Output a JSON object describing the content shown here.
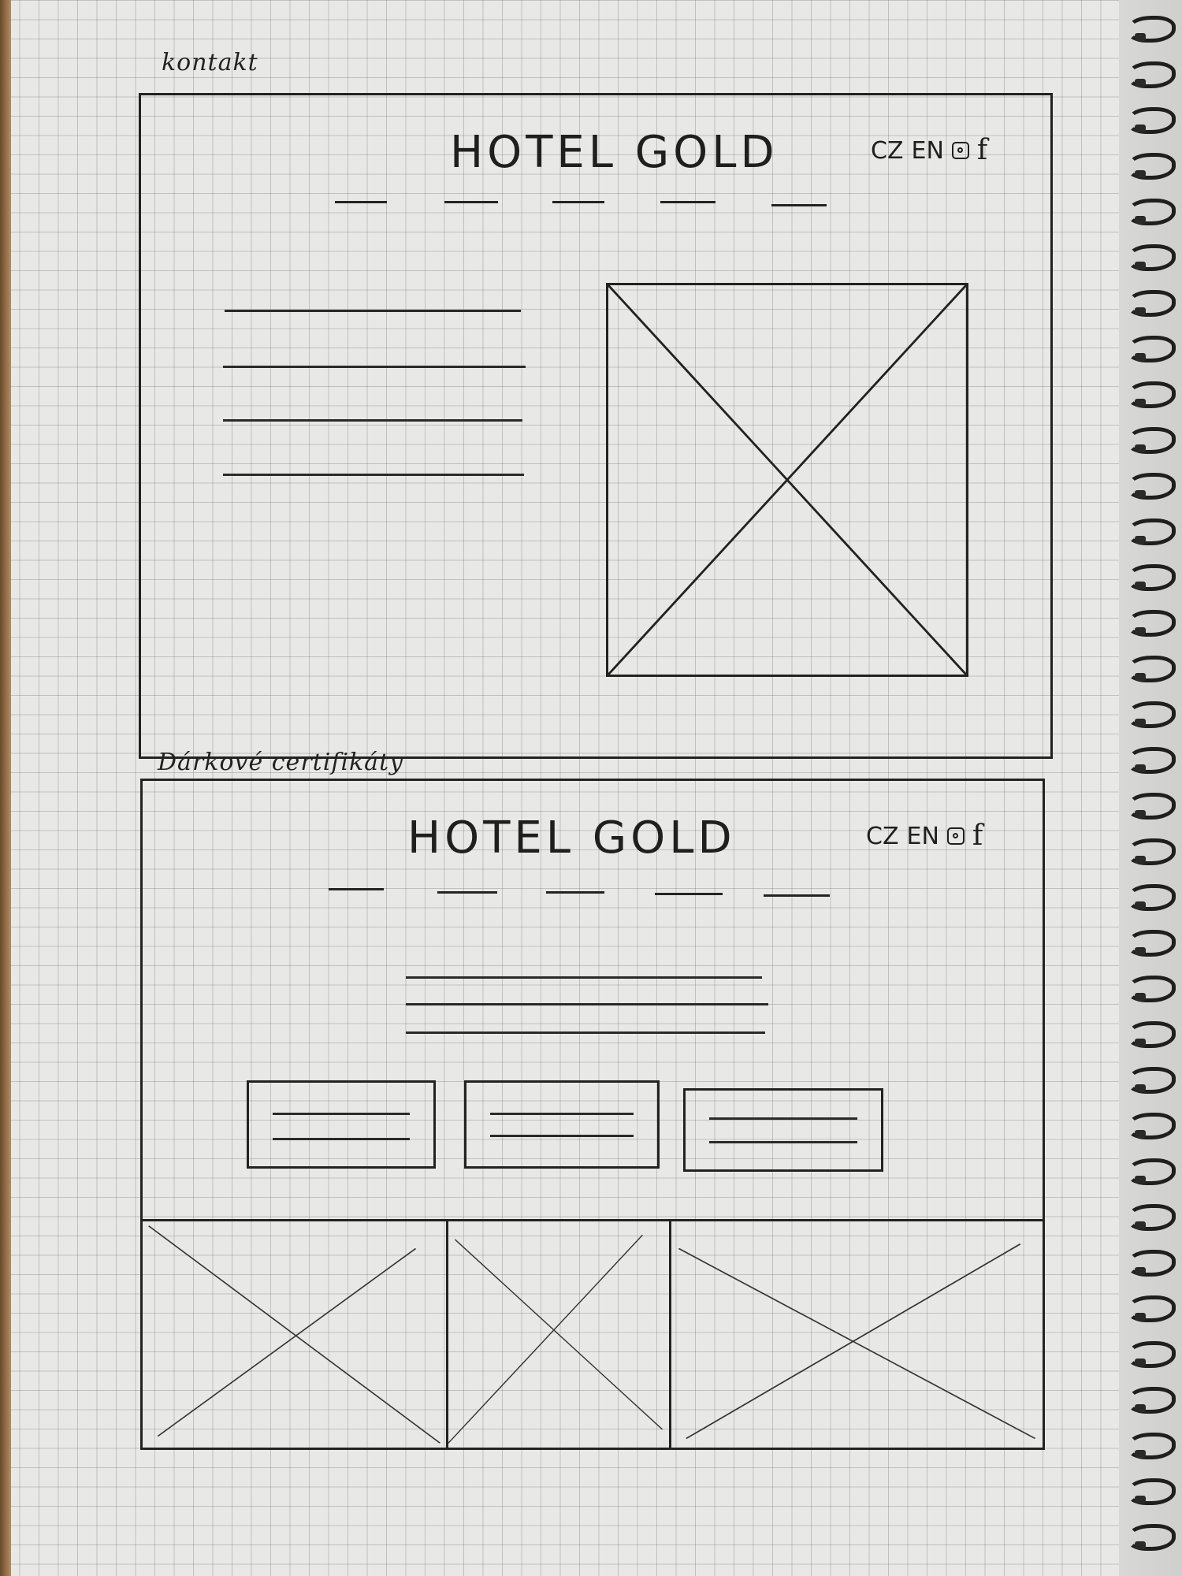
{
  "sketch_1": {
    "caption": "kontakt",
    "title": "HOTEL GOLD",
    "lang_cz": "CZ",
    "lang_en": "EN",
    "social": [
      "instagram-icon",
      "facebook-icon"
    ],
    "nav_items": 5,
    "text_lines": 4
  },
  "sketch_2": {
    "caption": "Dárkové certifikáty",
    "title": "HOTEL GOLD",
    "lang_cz": "CZ",
    "lang_en": "EN",
    "social": [
      "instagram-icon",
      "facebook-icon"
    ],
    "nav_items": 5,
    "intro_lines": 3,
    "cards": 3,
    "gallery_images": 3
  },
  "colors": {
    "ink": "#1f1f1f",
    "paper": "#e8e8e6",
    "grid": "#8a8a8a"
  }
}
